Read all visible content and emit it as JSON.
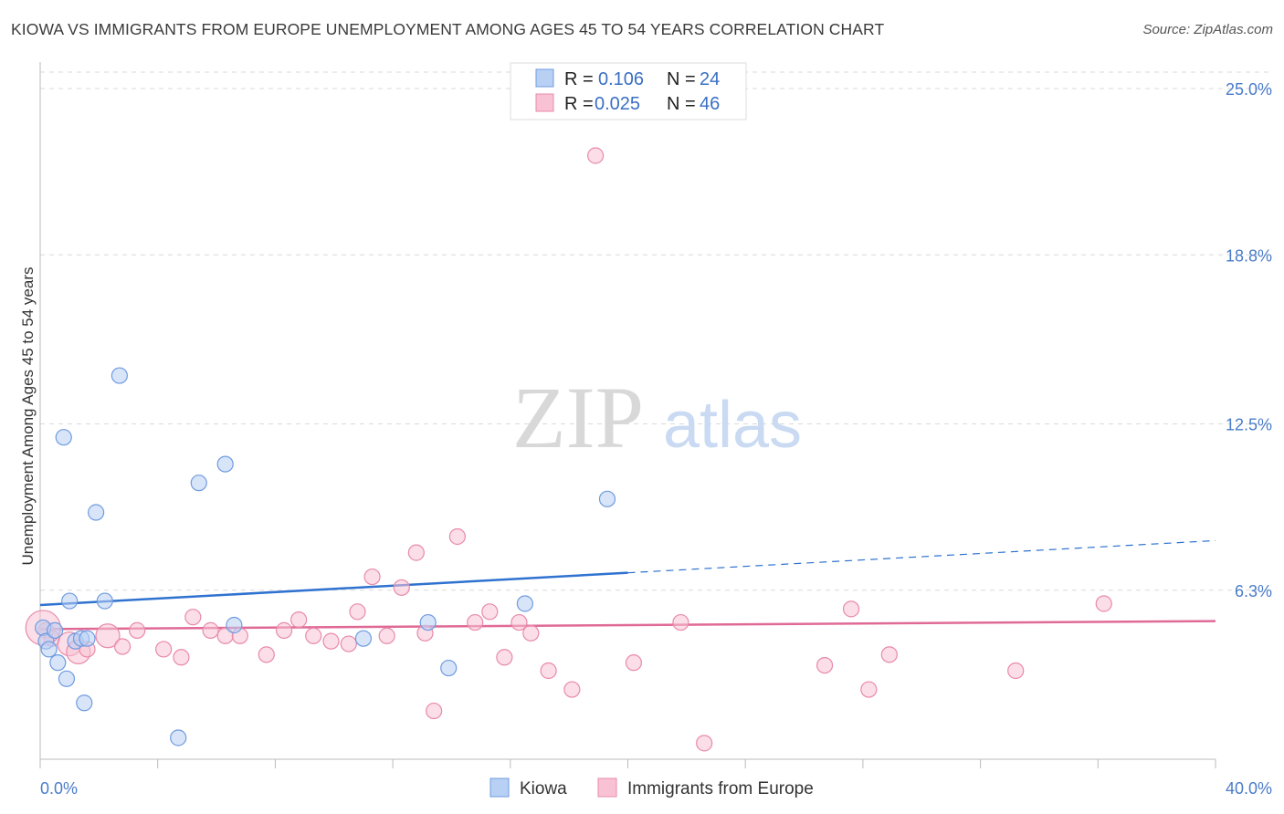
{
  "title": "KIOWA VS IMMIGRANTS FROM EUROPE UNEMPLOYMENT AMONG AGES 45 TO 54 YEARS CORRELATION CHART",
  "source": "Source: ZipAtlas.com",
  "watermark": {
    "zip": "ZIP",
    "atlas": "atlas"
  },
  "colors": {
    "kiowa_fill": "#b8d0f4",
    "kiowa_stroke": "#6f9be0",
    "kiowa_line": "#2f72d0",
    "europe_fill": "#f8c2d4",
    "europe_stroke": "#e88aaa",
    "europe_line": "#e06a96",
    "axis_label": "#4a7cc9",
    "grid": "#d9d9d9"
  },
  "legend": {
    "rows": [
      {
        "r_label": "R = ",
        "r_value": "0.106",
        "n_label": "N = ",
        "n_value": "24"
      },
      {
        "r_label": "R = ",
        "r_value": "0.025",
        "n_label": "N = ",
        "n_value": "46"
      }
    ]
  },
  "chart_data": {
    "type": "scatter",
    "xlabel": "",
    "ylabel": "Unemployment Among Ages 45 to 54 years",
    "xlim": [
      0,
      40
    ],
    "ylim": [
      0,
      25
    ],
    "x_tick_labels": [
      "0.0%",
      "40.0%"
    ],
    "y_ticks": [
      6.3,
      12.5,
      18.8,
      25.0
    ],
    "y_tick_labels": [
      "6.3%",
      "12.5%",
      "18.8%",
      "25.0%"
    ],
    "grid": true,
    "legend_position": "bottom-center",
    "series": [
      {
        "name": "Kiowa",
        "points": [
          {
            "x": 0.1,
            "y": 4.9
          },
          {
            "x": 0.2,
            "y": 4.4
          },
          {
            "x": 0.3,
            "y": 4.1
          },
          {
            "x": 0.5,
            "y": 4.8
          },
          {
            "x": 0.6,
            "y": 3.6
          },
          {
            "x": 0.8,
            "y": 12.0
          },
          {
            "x": 0.9,
            "y": 3.0
          },
          {
            "x": 1.0,
            "y": 5.9
          },
          {
            "x": 1.2,
            "y": 4.4
          },
          {
            "x": 1.4,
            "y": 4.5
          },
          {
            "x": 1.5,
            "y": 2.1
          },
          {
            "x": 1.6,
            "y": 4.5
          },
          {
            "x": 1.9,
            "y": 9.2
          },
          {
            "x": 2.2,
            "y": 5.9
          },
          {
            "x": 2.7,
            "y": 14.3
          },
          {
            "x": 4.7,
            "y": 0.8
          },
          {
            "x": 5.4,
            "y": 10.3
          },
          {
            "x": 6.3,
            "y": 11.0
          },
          {
            "x": 6.6,
            "y": 5.0
          },
          {
            "x": 11.0,
            "y": 4.5
          },
          {
            "x": 13.2,
            "y": 5.1
          },
          {
            "x": 13.9,
            "y": 3.4
          },
          {
            "x": 16.5,
            "y": 5.8
          },
          {
            "x": 19.3,
            "y": 9.7
          }
        ],
        "trend": {
          "x0": 0,
          "y0": 5.75,
          "x1": 20,
          "y1": 6.95,
          "x_dash_end": 40,
          "y_dash_end": 8.15
        }
      },
      {
        "name": "Immigrants from Europe",
        "points": [
          {
            "x": 0.2,
            "y": 4.8
          },
          {
            "x": 0.4,
            "y": 4.5
          },
          {
            "x": 1.0,
            "y": 4.3
          },
          {
            "x": 1.3,
            "y": 4.0
          },
          {
            "x": 1.6,
            "y": 4.1
          },
          {
            "x": 2.3,
            "y": 4.6
          },
          {
            "x": 2.8,
            "y": 4.2
          },
          {
            "x": 3.3,
            "y": 4.8
          },
          {
            "x": 4.2,
            "y": 4.1
          },
          {
            "x": 4.8,
            "y": 3.8
          },
          {
            "x": 5.2,
            "y": 5.3
          },
          {
            "x": 5.8,
            "y": 4.8
          },
          {
            "x": 6.3,
            "y": 4.6
          },
          {
            "x": 6.8,
            "y": 4.6
          },
          {
            "x": 7.7,
            "y": 3.9
          },
          {
            "x": 8.3,
            "y": 4.8
          },
          {
            "x": 8.8,
            "y": 5.2
          },
          {
            "x": 9.3,
            "y": 4.6
          },
          {
            "x": 9.9,
            "y": 4.4
          },
          {
            "x": 10.5,
            "y": 4.3
          },
          {
            "x": 10.8,
            "y": 5.5
          },
          {
            "x": 11.3,
            "y": 6.8
          },
          {
            "x": 11.8,
            "y": 4.6
          },
          {
            "x": 12.3,
            "y": 6.4
          },
          {
            "x": 12.8,
            "y": 7.7
          },
          {
            "x": 13.1,
            "y": 4.7
          },
          {
            "x": 13.4,
            "y": 1.8
          },
          {
            "x": 14.2,
            "y": 8.3
          },
          {
            "x": 14.8,
            "y": 5.1
          },
          {
            "x": 15.3,
            "y": 5.5
          },
          {
            "x": 15.8,
            "y": 3.8
          },
          {
            "x": 16.3,
            "y": 5.1
          },
          {
            "x": 16.7,
            "y": 4.7
          },
          {
            "x": 17.3,
            "y": 3.3
          },
          {
            "x": 18.1,
            "y": 2.6
          },
          {
            "x": 18.9,
            "y": 22.5
          },
          {
            "x": 20.2,
            "y": 3.6
          },
          {
            "x": 21.8,
            "y": 5.1
          },
          {
            "x": 22.6,
            "y": 0.6
          },
          {
            "x": 26.7,
            "y": 3.5
          },
          {
            "x": 27.6,
            "y": 5.6
          },
          {
            "x": 28.2,
            "y": 2.6
          },
          {
            "x": 28.9,
            "y": 3.9
          },
          {
            "x": 33.2,
            "y": 3.3
          },
          {
            "x": 36.2,
            "y": 5.8
          },
          {
            "x": 0.1,
            "y": 4.9
          }
        ],
        "trend": {
          "x0": 0,
          "y0": 4.85,
          "x1": 40,
          "y1": 5.15
        }
      }
    ]
  }
}
